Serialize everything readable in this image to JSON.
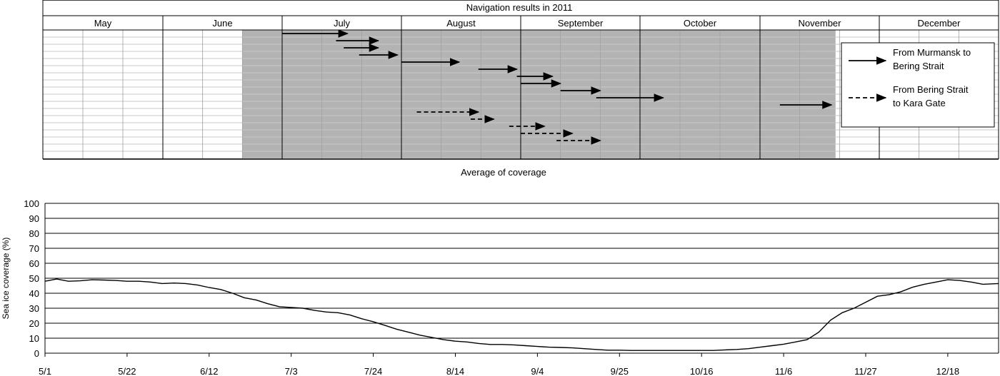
{
  "chart_data": [
    {
      "type": "gantt",
      "title": "Navigation results in 2011",
      "months": [
        "May",
        "June",
        "July",
        "August",
        "September",
        "October",
        "November",
        "December"
      ],
      "shaded_period": {
        "start": "2011-06-21",
        "end": "2011-11-20",
        "color": "#b3b3b3"
      },
      "legend_position": "right",
      "series": [
        {
          "name": "From Murmansk to Bering Strait",
          "line_style": "solid",
          "voyages": [
            {
              "row": 1,
              "start": "2011-07-01",
              "end": "2011-07-18"
            },
            {
              "row": 2,
              "start": "2011-07-15",
              "end": "2011-07-26"
            },
            {
              "row": 3,
              "start": "2011-07-17",
              "end": "2011-07-26"
            },
            {
              "row": 4,
              "start": "2011-07-21",
              "end": "2011-07-31"
            },
            {
              "row": 5,
              "start": "2011-08-01",
              "end": "2011-08-16"
            },
            {
              "row": 6,
              "start": "2011-08-21",
              "end": "2011-08-31"
            },
            {
              "row": 7,
              "start": "2011-08-31",
              "end": "2011-09-09"
            },
            {
              "row": 8,
              "start": "2011-09-01",
              "end": "2011-09-11"
            },
            {
              "row": 9,
              "start": "2011-09-11",
              "end": "2011-09-21"
            },
            {
              "row": 10,
              "start": "2011-09-20",
              "end": "2011-10-07"
            },
            {
              "row": 11,
              "start": "2011-11-06",
              "end": "2011-11-19"
            }
          ]
        },
        {
          "name": "From Bering Strait to Kara Gate",
          "line_style": "dashed",
          "voyages": [
            {
              "row": 12,
              "start": "2011-08-05",
              "end": "2011-08-21"
            },
            {
              "row": 13,
              "start": "2011-08-19",
              "end": "2011-08-25"
            },
            {
              "row": 14,
              "start": "2011-08-29",
              "end": "2011-09-07"
            },
            {
              "row": 15,
              "start": "2011-09-01",
              "end": "2011-09-14"
            },
            {
              "row": 16,
              "start": "2011-09-10",
              "end": "2011-09-21"
            }
          ]
        }
      ],
      "legend": [
        "From Murmansk to\nBering Strait",
        "From Bering Strait\nto Kara Gate"
      ],
      "grid": true
    },
    {
      "type": "line",
      "title": "Average of coverage",
      "xlabel": "",
      "ylabel": "Sea ice coverage (%)",
      "x_ticks": [
        "5/1",
        "5/22",
        "6/12",
        "7/3",
        "7/24",
        "8/14",
        "9/4",
        "9/25",
        "10/16",
        "11/6",
        "11/27",
        "12/18"
      ],
      "y_ticks": [
        0,
        10,
        20,
        30,
        40,
        50,
        60,
        70,
        80,
        90,
        100
      ],
      "ylim": [
        0,
        100
      ],
      "xlim": [
        "2011-05-01",
        "2011-12-31"
      ],
      "grid": true,
      "series": [
        {
          "points": [
            [
              "2011-05-01",
              48
            ],
            [
              "2011-05-04",
              49.5
            ],
            [
              "2011-05-07",
              48
            ],
            [
              "2011-05-10",
              48.3
            ],
            [
              "2011-05-13",
              49
            ],
            [
              "2011-05-16",
              48.8
            ],
            [
              "2011-05-19",
              48.5
            ],
            [
              "2011-05-22",
              48
            ],
            [
              "2011-05-25",
              48
            ],
            [
              "2011-05-28",
              47.5
            ],
            [
              "2011-05-31",
              46.5
            ],
            [
              "2011-06-03",
              46.8
            ],
            [
              "2011-06-06",
              46.5
            ],
            [
              "2011-06-09",
              45.5
            ],
            [
              "2011-06-12",
              43.8
            ],
            [
              "2011-06-15",
              42.5
            ],
            [
              "2011-06-18",
              40
            ],
            [
              "2011-06-21",
              37
            ],
            [
              "2011-06-24",
              35.5
            ],
            [
              "2011-06-27",
              33
            ],
            [
              "2011-06-30",
              31
            ],
            [
              "2011-07-03",
              30.5
            ],
            [
              "2011-07-06",
              30
            ],
            [
              "2011-07-09",
              28.5
            ],
            [
              "2011-07-12",
              27.5
            ],
            [
              "2011-07-15",
              27
            ],
            [
              "2011-07-18",
              25.5
            ],
            [
              "2011-07-21",
              23
            ],
            [
              "2011-07-24",
              21
            ],
            [
              "2011-07-27",
              18.5
            ],
            [
              "2011-07-30",
              16
            ],
            [
              "2011-08-02",
              14
            ],
            [
              "2011-08-05",
              12
            ],
            [
              "2011-08-08",
              10.5
            ],
            [
              "2011-08-11",
              9
            ],
            [
              "2011-08-14",
              8
            ],
            [
              "2011-08-17",
              7.5
            ],
            [
              "2011-08-20",
              6.5
            ],
            [
              "2011-08-23",
              5.8
            ],
            [
              "2011-08-26",
              5.8
            ],
            [
              "2011-08-29",
              5.5
            ],
            [
              "2011-09-01",
              5
            ],
            [
              "2011-09-04",
              4.5
            ],
            [
              "2011-09-07",
              4
            ],
            [
              "2011-09-10",
              3.8
            ],
            [
              "2011-09-13",
              3.5
            ],
            [
              "2011-09-16",
              3
            ],
            [
              "2011-09-19",
              2.5
            ],
            [
              "2011-09-22",
              2
            ],
            [
              "2011-09-25",
              2
            ],
            [
              "2011-09-28",
              1.8
            ],
            [
              "2011-10-01",
              1.8
            ],
            [
              "2011-10-04",
              1.8
            ],
            [
              "2011-10-07",
              1.8
            ],
            [
              "2011-10-10",
              1.8
            ],
            [
              "2011-10-13",
              1.8
            ],
            [
              "2011-10-16",
              1.8
            ],
            [
              "2011-10-19",
              1.8
            ],
            [
              "2011-10-22",
              2.2
            ],
            [
              "2011-10-25",
              2.5
            ],
            [
              "2011-10-28",
              3
            ],
            [
              "2011-10-31",
              4
            ],
            [
              "2011-11-03",
              5
            ],
            [
              "2011-11-06",
              6
            ],
            [
              "2011-11-09",
              7.5
            ],
            [
              "2011-11-12",
              9
            ],
            [
              "2011-11-15",
              14
            ],
            [
              "2011-11-18",
              22
            ],
            [
              "2011-11-21",
              27
            ],
            [
              "2011-11-24",
              30
            ],
            [
              "2011-11-27",
              34
            ],
            [
              "2011-11-30",
              38
            ],
            [
              "2011-12-03",
              39
            ],
            [
              "2011-12-06",
              41
            ],
            [
              "2011-12-09",
              44
            ],
            [
              "2011-12-12",
              46
            ],
            [
              "2011-12-15",
              47.5
            ],
            [
              "2011-12-18",
              49
            ],
            [
              "2011-12-21",
              48.5
            ],
            [
              "2011-12-24",
              47.5
            ],
            [
              "2011-12-27",
              46
            ],
            [
              "2011-12-31",
              46.5
            ]
          ]
        }
      ]
    }
  ]
}
